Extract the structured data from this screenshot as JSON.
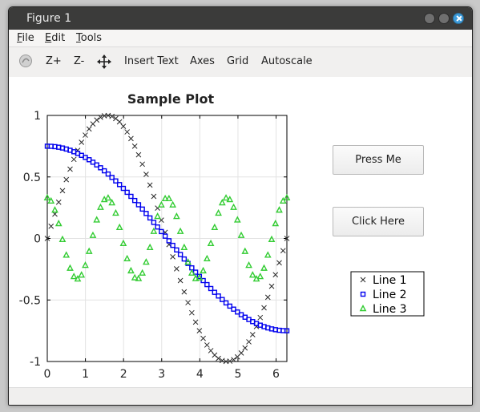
{
  "window": {
    "title": "Figure 1"
  },
  "menu": {
    "file": "File",
    "edit": "Edit",
    "tools": "Tools"
  },
  "toolbar": {
    "zoom_in": "Z+",
    "zoom_out": "Z-",
    "insert_text": "Insert Text",
    "axes": "Axes",
    "grid": "Grid",
    "autoscale": "Autoscale"
  },
  "buttons": {
    "press_me": "Press Me",
    "click_here": "Click Here"
  },
  "colors": {
    "line1": "#2a2a2a",
    "line2": "#0000ee",
    "line3": "#33cc33"
  },
  "chart_data": {
    "type": "scatter",
    "title": "Sample Plot",
    "xlabel": "",
    "ylabel": "",
    "xlim": [
      0,
      6.2832
    ],
    "ylim": [
      -1,
      1
    ],
    "xticks": [
      "0",
      "1",
      "2",
      "3",
      "4",
      "5",
      "6"
    ],
    "yticks": [
      "1",
      "0.5",
      "0",
      "-0.5",
      "-1"
    ],
    "grid": true,
    "legend_position": "right",
    "series": [
      {
        "name": "Line 1",
        "marker": "x",
        "formula": "sin(x)",
        "points": 64
      },
      {
        "name": "Line 2",
        "marker": "square",
        "formula": "0.75*cos(x/2)",
        "points": 64
      },
      {
        "name": "Line 3",
        "marker": "triangle",
        "formula": "0.33*cos(4x)",
        "points": 64
      }
    ]
  }
}
